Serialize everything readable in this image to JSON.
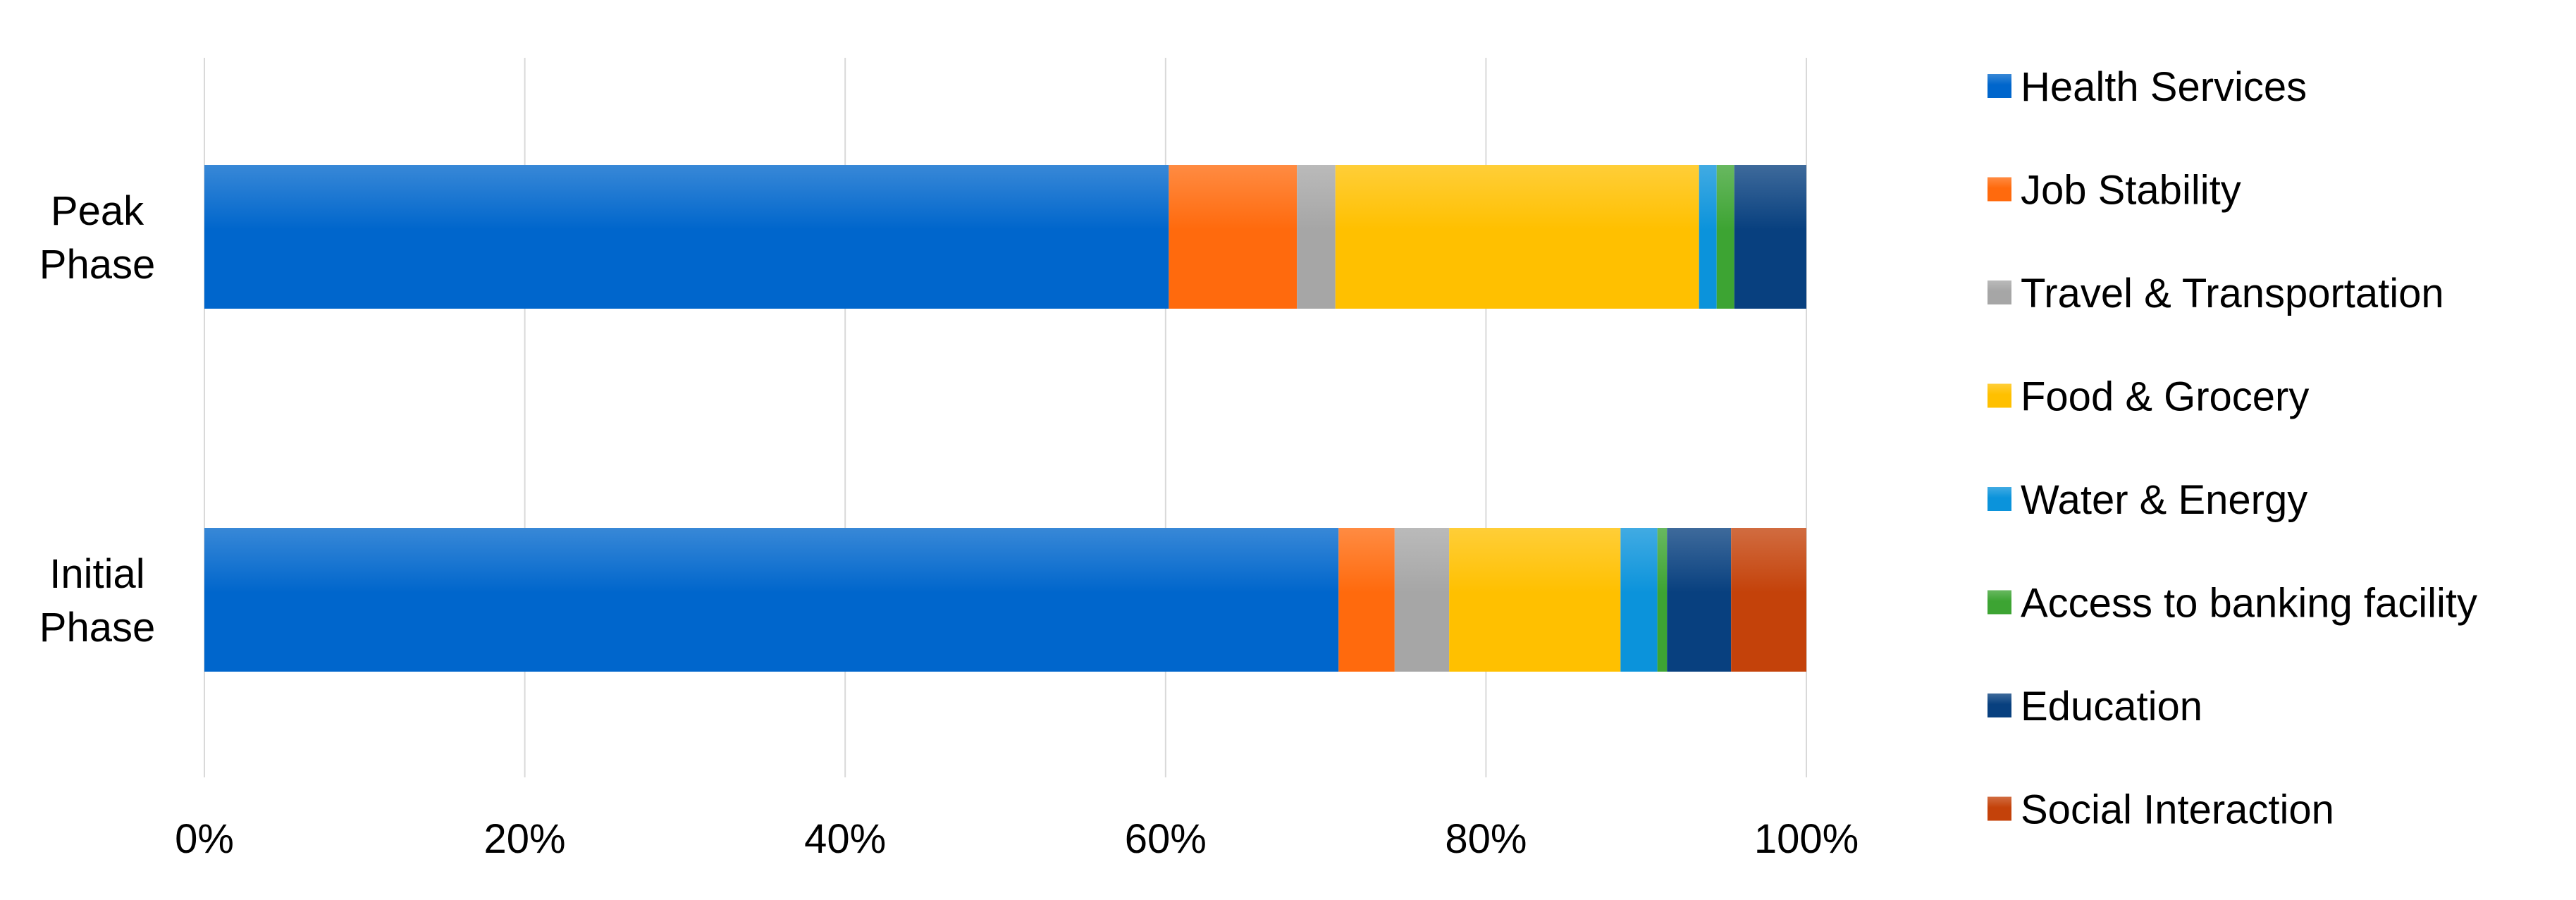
{
  "chart_data": {
    "type": "bar",
    "orientation": "horizontal",
    "stacked": "percent",
    "title": "",
    "xlabel": "",
    "ylabel": "",
    "xlim": [
      0,
      100
    ],
    "x_ticks": [
      "0%",
      "20%",
      "40%",
      "60%",
      "80%",
      "100%"
    ],
    "grid": true,
    "legend_position": "right",
    "categories": [
      [
        "Peak",
        "Phase"
      ],
      [
        "Initial",
        "Phase"
      ]
    ],
    "series": [
      {
        "name": "Health Services",
        "color": "#0066CC",
        "values": [
          60.2,
          70.8
        ]
      },
      {
        "name": "Job Stability",
        "color": "#FF6A0D",
        "values": [
          8.0,
          3.5
        ]
      },
      {
        "name": "Travel & Transportation",
        "color": "#A6A6A6",
        "values": [
          2.4,
          3.4
        ]
      },
      {
        "name": "Food & Grocery",
        "color": "#FFC000",
        "values": [
          22.7,
          10.7
        ]
      },
      {
        "name": "Water & Energy",
        "color": "#0B93DB",
        "values": [
          1.1,
          2.3
        ]
      },
      {
        "name": "Access to banking facility",
        "color": "#3DA433",
        "values": [
          1.1,
          0.6
        ]
      },
      {
        "name": "Education",
        "color": "#08407F",
        "values": [
          4.5,
          4.0
        ]
      },
      {
        "name": "Social Interaction",
        "color": "#C4420A",
        "values": [
          0.0,
          4.7
        ]
      }
    ]
  }
}
